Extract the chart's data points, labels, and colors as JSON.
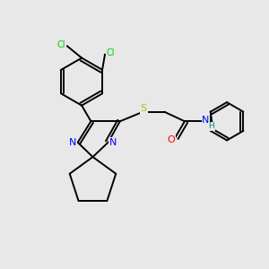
{
  "background_color": "#e8e8e8",
  "atom_colors": {
    "C": "#000000",
    "N": "#0000ff",
    "O": "#ff0000",
    "S": "#b8b800",
    "Cl": "#00cc00",
    "H": "#008888"
  },
  "figsize": [
    3.0,
    3.0
  ],
  "dpi": 100,
  "lw": 1.4
}
